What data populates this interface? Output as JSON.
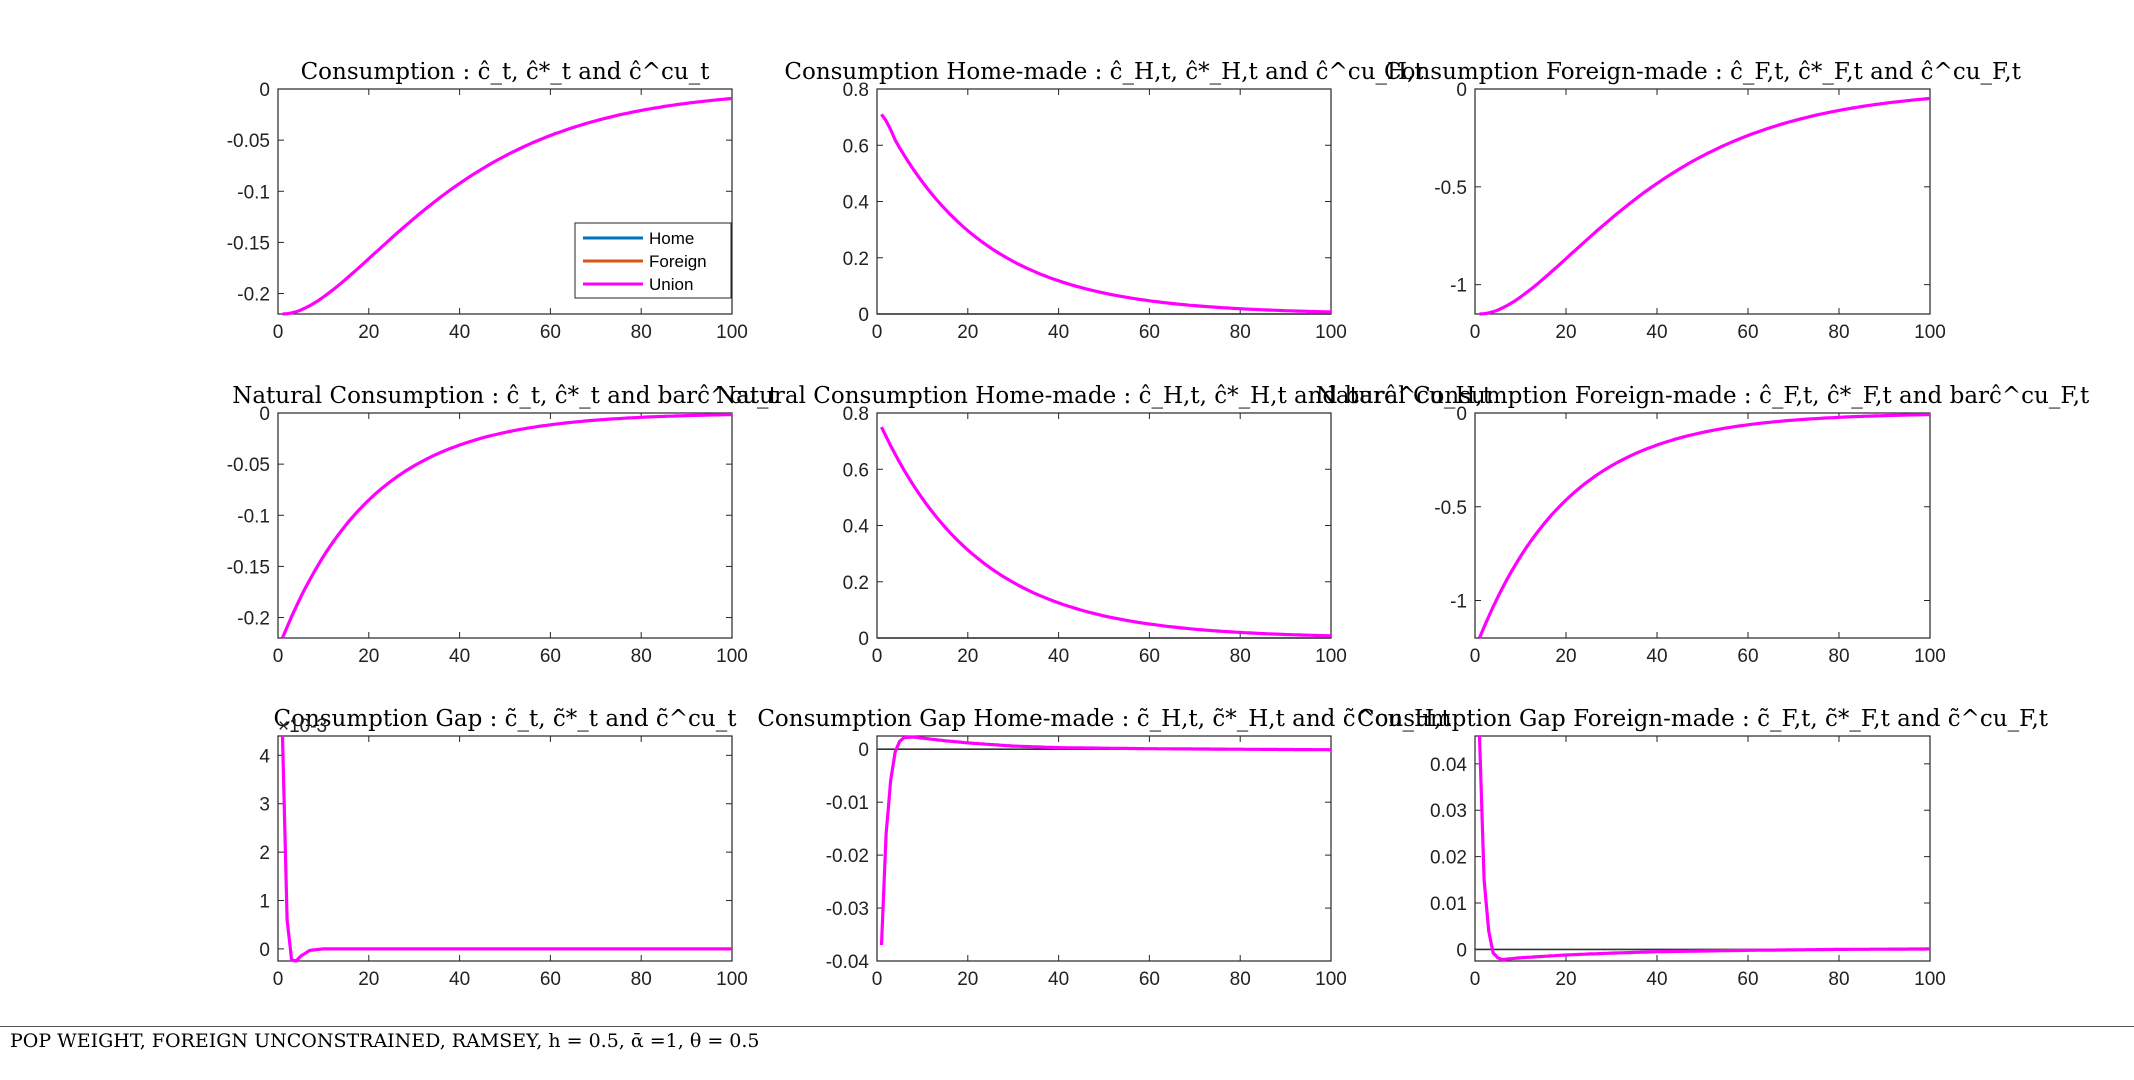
{
  "footer": "POP WEIGHT, FOREIGN UNCONSTRAINED, RAMSEY, h = 0.5, ᾱ =1, θ = 0.5",
  "colors": {
    "home": "#0072BD",
    "foreign": "#D95319",
    "union": "#FF00FF",
    "zero_line": "#333333",
    "axes": "#262626"
  },
  "legend": [
    "Home",
    "Foreign",
    "Union"
  ],
  "chart_data": [
    {
      "type": "line",
      "title": "Consumption : ĉ_t, ĉ*_t and ĉ^cu_t",
      "xlim": [
        0,
        100
      ],
      "ylim": [
        -0.22,
        0
      ],
      "xticks": [
        0,
        20,
        40,
        60,
        80,
        100
      ],
      "yticks": [
        0,
        -0.05,
        -0.1,
        -0.15,
        -0.2
      ],
      "yticklabels": [
        "0",
        "-0.05",
        "-0.1",
        "-0.15",
        "-0.2"
      ],
      "zero_line": false,
      "legend": true,
      "series": [
        {
          "name": "Union",
          "shape": "rise",
          "start": -0.22,
          "end": 0,
          "rate": 0.05
        }
      ]
    },
    {
      "type": "line",
      "title": "Consumption Home-made : ĉ_H,t, ĉ*_H,t and ĉ^cu_H,t",
      "xlim": [
        0,
        100
      ],
      "ylim": [
        0,
        0.8
      ],
      "xticks": [
        0,
        20,
        40,
        60,
        80,
        100
      ],
      "yticks": [
        0,
        0.2,
        0.4,
        0.6,
        0.8
      ],
      "yticklabels": [
        "0",
        "0.2",
        "0.4",
        "0.6",
        "0.8"
      ],
      "zero_line": true,
      "legend": false,
      "series": [
        {
          "name": "Union",
          "shape": "hump",
          "start": 0.71,
          "end": 0,
          "rate": 0.046
        }
      ]
    },
    {
      "type": "line",
      "title": "Consumption Foreign-made : ĉ_F,t, ĉ*_F,t and ĉ^cu_F,t",
      "xlim": [
        0,
        100
      ],
      "ylim": [
        -1.15,
        0
      ],
      "xticks": [
        0,
        20,
        40,
        60,
        80,
        100
      ],
      "yticks": [
        0,
        -0.5,
        -1
      ],
      "yticklabels": [
        "0",
        "-0.5",
        "-1"
      ],
      "zero_line": false,
      "legend": false,
      "series": [
        {
          "name": "Union",
          "shape": "rise",
          "start": -1.15,
          "end": 0,
          "rate": 0.05
        }
      ]
    },
    {
      "type": "line",
      "title": "Natural Consumption : ĉ_t, ĉ*_t and barĉ^cu_t",
      "xlim": [
        0,
        100
      ],
      "ylim": [
        -0.22,
        0
      ],
      "xticks": [
        0,
        20,
        40,
        60,
        80,
        100
      ],
      "yticks": [
        0,
        -0.05,
        -0.1,
        -0.15,
        -0.2
      ],
      "yticklabels": [
        "0",
        "-0.05",
        "-0.1",
        "-0.15",
        "-0.2"
      ],
      "zero_line": false,
      "legend": false,
      "series": [
        {
          "name": "Union",
          "shape": "decay",
          "start": -0.22,
          "end": 0,
          "rate": 0.05
        }
      ]
    },
    {
      "type": "line",
      "title": "Natural Consumption Home-made : ĉ_H,t, ĉ*_H,t and barĉ^cu_H,t",
      "xlim": [
        0,
        100
      ],
      "ylim": [
        0,
        0.8
      ],
      "xticks": [
        0,
        20,
        40,
        60,
        80,
        100
      ],
      "yticks": [
        0,
        0.2,
        0.4,
        0.6,
        0.8
      ],
      "yticklabels": [
        "0",
        "0.2",
        "0.4",
        "0.6",
        "0.8"
      ],
      "zero_line": true,
      "legend": false,
      "series": [
        {
          "name": "Union",
          "shape": "decay",
          "start": 0.75,
          "end": 0,
          "rate": 0.046
        }
      ]
    },
    {
      "type": "line",
      "title": "Natural Consumption Foreign-made : ĉ_F,t, ĉ*_F,t and barĉ^cu_F,t",
      "xlim": [
        0,
        100
      ],
      "ylim": [
        -1.2,
        0
      ],
      "xticks": [
        0,
        20,
        40,
        60,
        80,
        100
      ],
      "yticks": [
        0,
        -0.5,
        -1
      ],
      "yticklabels": [
        "0",
        "-0.5",
        "-1"
      ],
      "zero_line": false,
      "legend": false,
      "series": [
        {
          "name": "Union",
          "shape": "decay",
          "start": -1.2,
          "end": 0,
          "rate": 0.05
        }
      ]
    },
    {
      "type": "line",
      "title": "Consumption Gap : c̃_t, c̃*_t and c̃^cu_t",
      "xlim": [
        0,
        100
      ],
      "ylim": [
        -0.00025,
        0.0044
      ],
      "xticks": [
        0,
        20,
        40,
        60,
        80,
        100
      ],
      "yticks": [
        0,
        0.001,
        0.002,
        0.003,
        0.004
      ],
      "yticklabels": [
        "0",
        "1",
        "2",
        "3",
        "4"
      ],
      "exponent_label": "×10-3",
      "zero_line": false,
      "legend": false,
      "series": [
        {
          "name": "Union",
          "shape": "points",
          "points": [
            [
              1,
              0.0044
            ],
            [
              2,
              0.0006
            ],
            [
              3,
              -0.00023
            ],
            [
              4,
              -0.00025
            ],
            [
              5,
              -0.00015
            ],
            [
              7,
              -3e-05
            ],
            [
              10,
              0
            ],
            [
              100,
              0
            ]
          ]
        }
      ]
    },
    {
      "type": "line",
      "title": "Consumption Gap Home-made : c̃_H,t, c̃*_H,t and c̃^cu_H,t",
      "xlim": [
        0,
        100
      ],
      "ylim": [
        -0.04,
        0.0025
      ],
      "xticks": [
        0,
        20,
        40,
        60,
        80,
        100
      ],
      "yticks": [
        0,
        -0.01,
        -0.02,
        -0.03,
        -0.04
      ],
      "yticklabels": [
        "0",
        "-0.01",
        "-0.02",
        "-0.03",
        "-0.04"
      ],
      "zero_line": true,
      "legend": false,
      "series": [
        {
          "name": "Union",
          "shape": "points",
          "points": [
            [
              1,
              -0.037
            ],
            [
              2,
              -0.016
            ],
            [
              3,
              -0.006
            ],
            [
              4,
              -0.0005
            ],
            [
              5,
              0.0015
            ],
            [
              6,
              0.0022
            ],
            [
              8,
              0.0023
            ],
            [
              10,
              0.0021
            ],
            [
              15,
              0.0016
            ],
            [
              20,
              0.0012
            ],
            [
              30,
              0.0006
            ],
            [
              40,
              0.0003
            ],
            [
              60,
              0.0001
            ],
            [
              80,
              0
            ],
            [
              100,
              -0.0001
            ]
          ]
        }
      ]
    },
    {
      "type": "line",
      "title": "Consumption Gap Foreign-made : c̃_F,t, c̃*_F,t and c̃^cu_F,t",
      "xlim": [
        0,
        100
      ],
      "ylim": [
        -0.0025,
        0.046
      ],
      "xticks": [
        0,
        20,
        40,
        60,
        80,
        100
      ],
      "yticks": [
        0,
        0.01,
        0.02,
        0.03,
        0.04
      ],
      "yticklabels": [
        "0",
        "0.01",
        "0.02",
        "0.03",
        "0.04"
      ],
      "zero_line": true,
      "legend": false,
      "series": [
        {
          "name": "Union",
          "shape": "points",
          "points": [
            [
              1,
              0.046
            ],
            [
              2,
              0.015
            ],
            [
              3,
              0.004
            ],
            [
              4,
              -0.0008
            ],
            [
              5,
              -0.0018
            ],
            [
              6,
              -0.0022
            ],
            [
              8,
              -0.002
            ],
            [
              10,
              -0.0018
            ],
            [
              15,
              -0.0015
            ],
            [
              20,
              -0.0012
            ],
            [
              30,
              -0.0008
            ],
            [
              40,
              -0.0005
            ],
            [
              60,
              -0.0002
            ],
            [
              80,
              0
            ],
            [
              100,
              0.0001
            ]
          ]
        }
      ]
    }
  ]
}
